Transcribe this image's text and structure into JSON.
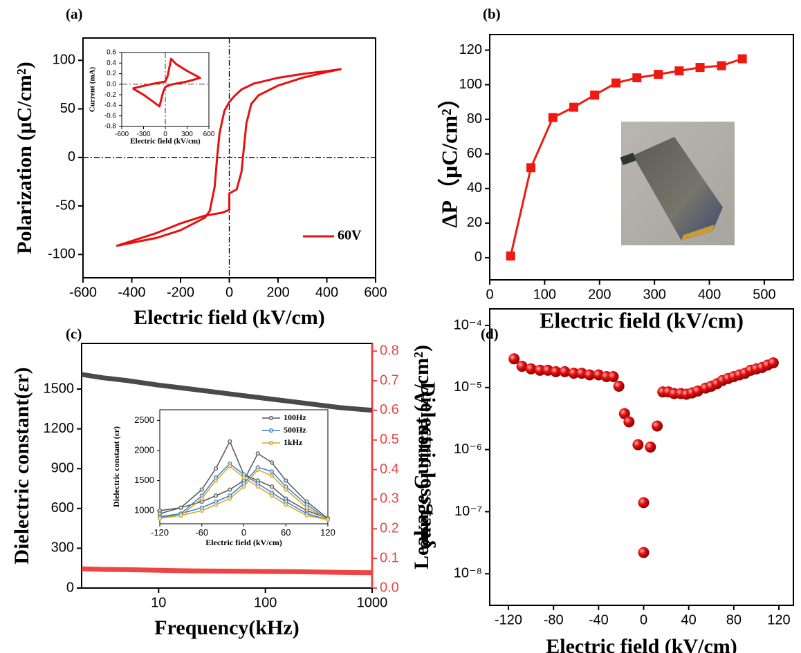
{
  "chart_data": [
    {
      "type": "line",
      "label": "(a)",
      "xlabel": "Electric field (kV/cm)",
      "ylabel": "Polarization (μC/cm²)",
      "xlim": [
        -600,
        600
      ],
      "xticks": [
        -600,
        -400,
        -200,
        0,
        200,
        400,
        600
      ],
      "ylim": [
        -124,
        123
      ],
      "yticks": [
        -100,
        -50,
        0,
        50,
        100
      ],
      "legend": "lower right",
      "series": [
        {
          "name": "60V",
          "color": "#e8100f",
          "x": [
            460,
            400,
            300,
            200,
            100,
            50,
            20,
            0,
            -20,
            -40,
            -50,
            -60,
            -80,
            -100,
            -200,
            -300,
            -400,
            -460,
            -300,
            -200,
            -100,
            -30,
            0,
            0,
            30,
            50,
            60,
            70,
            90,
            120,
            200,
            300,
            400,
            460
          ],
          "values": [
            91,
            89,
            86,
            82,
            76,
            70,
            63,
            57,
            48,
            25,
            0,
            -30,
            -55,
            -62,
            -75,
            -83,
            -88,
            -91,
            -78,
            -68,
            -60,
            -57,
            -54,
            -37,
            -33,
            -15,
            10,
            35,
            55,
            64,
            74,
            82,
            88,
            91
          ]
        }
      ]
    },
    {
      "type": "line",
      "xlabel": "Electric field (kV/cm)",
      "ylabel": "Current (mA)",
      "xlim": [
        -600,
        600
      ],
      "xticks": [
        -600,
        -300,
        0,
        300,
        600
      ],
      "ylim": [
        -0.8,
        0.6
      ],
      "yticks": [
        -0.8,
        -0.6,
        -0.4,
        -0.2,
        {
          "value": 0,
          "label": "0.0"
        },
        0.2,
        0.4,
        0.6
      ],
      "series": [
        {
          "color": "#e8100f",
          "x": [
            -450,
            -200,
            0,
            30,
            80,
            150,
            300,
            480,
            300,
            100,
            0,
            -30,
            -80,
            -150,
            -300,
            -450
          ],
          "values": [
            -0.08,
            0.0,
            0.05,
            0.15,
            0.48,
            0.38,
            0.25,
            0.12,
            0.05,
            0.0,
            -0.05,
            -0.15,
            -0.42,
            -0.35,
            -0.2,
            -0.08
          ]
        }
      ]
    },
    {
      "type": "line",
      "label": "(b)",
      "xlabel": "Electric field (kV/cm)",
      "ylabel": "ΔP（μC/cm²）",
      "xlim": [
        0,
        553
      ],
      "xticks": [
        0,
        100,
        200,
        300,
        400,
        500
      ],
      "ylim": [
        -12.8,
        129
      ],
      "yticks": [
        0,
        20,
        40,
        60,
        80,
        100,
        120
      ],
      "series": [
        {
          "color": "#ee1a12",
          "marker": "square",
          "x": [
            38,
            75,
            115,
            153,
            191,
            230,
            268,
            307,
            345,
            383,
            422,
            460
          ],
          "values": [
            1,
            52,
            81,
            87,
            94,
            101,
            104,
            106,
            108,
            110,
            111,
            115
          ]
        }
      ]
    },
    {
      "type": "line",
      "label": "(c)",
      "xlabel": "Frequency(kHz)",
      "ylabel": "Dielectric constant(εr)",
      "y2label": "Dielectric loss tanδ",
      "xscale": "log",
      "xlim": [
        1.9,
        1000
      ],
      "xticks": [
        10,
        100,
        1000
      ],
      "ylim": [
        0,
        1844
      ],
      "yticks": [
        0,
        300,
        600,
        900,
        1200,
        1500
      ],
      "y2lim": [
        0,
        0.826
      ],
      "y2ticks": [
        {
          "value": 0,
          "label": "0.0"
        },
        0.1,
        0.2,
        0.3,
        0.4,
        0.5,
        0.6,
        0.7,
        0.8
      ],
      "series": [
        {
          "color": "#4a4a4a",
          "x": [
            1.9,
            3,
            5,
            10,
            20,
            50,
            100,
            200,
            500,
            1000
          ],
          "values": [
            1610,
            1585,
            1565,
            1530,
            1500,
            1460,
            1430,
            1400,
            1360,
            1340
          ]
        },
        {
          "color": "#ee4444",
          "axis": "y2",
          "x": [
            1.9,
            3,
            5,
            10,
            20,
            50,
            100,
            200,
            500,
            1000
          ],
          "values": [
            0.065,
            0.063,
            0.062,
            0.06,
            0.058,
            0.057,
            0.056,
            0.055,
            0.053,
            0.052
          ]
        }
      ]
    },
    {
      "type": "line",
      "xlabel": "Electric field (kV/cm)",
      "ylabel": "Dielectric constant (εr)",
      "xlim": [
        -120,
        120
      ],
      "xticks": [
        -120,
        -60,
        0,
        60,
        120
      ],
      "ylim": [
        782,
        2677
      ],
      "yticks": [
        1000,
        1500,
        2000,
        2500
      ],
      "legend": "upper right",
      "series": [
        {
          "name": "100Hz",
          "color": "#555555",
          "marker": "circle",
          "x": [
            -120,
            -90,
            -60,
            -40,
            -20,
            0,
            20,
            40,
            60,
            90,
            120,
            90,
            60,
            40,
            20,
            0,
            -20,
            -40,
            -60,
            -90,
            -120
          ],
          "values": [
            1000,
            1050,
            1150,
            1250,
            1350,
            1500,
            1950,
            1800,
            1500,
            1150,
            870,
            1000,
            1200,
            1400,
            1500,
            1600,
            2150,
            1700,
            1350,
            1050,
            950
          ]
        },
        {
          "name": "500Hz",
          "color": "#2f7fd6",
          "marker": "circle",
          "x": [
            -120,
            -90,
            -60,
            -40,
            -20,
            0,
            20,
            40,
            60,
            90,
            120,
            90,
            60,
            40,
            20,
            0,
            -20,
            -40,
            -60,
            -90,
            -120
          ],
          "values": [
            900,
            950,
            1050,
            1150,
            1250,
            1450,
            1720,
            1650,
            1400,
            1100,
            850,
            950,
            1150,
            1300,
            1450,
            1600,
            1780,
            1550,
            1250,
            950,
            880
          ]
        },
        {
          "name": "1kHz",
          "color": "#d6a51c",
          "marker": "circle",
          "x": [
            -120,
            -90,
            -60,
            -40,
            -20,
            0,
            20,
            40,
            60,
            90,
            120,
            90,
            60,
            40,
            20,
            0,
            -20,
            -40,
            -60,
            -90,
            -120
          ],
          "values": [
            880,
            920,
            1000,
            1100,
            1200,
            1400,
            1680,
            1580,
            1350,
            1050,
            850,
            920,
            1100,
            1250,
            1400,
            1550,
            1740,
            1500,
            1200,
            920,
            870
          ]
        }
      ]
    },
    {
      "type": "scatter",
      "label": "(d)",
      "xlabel": "Electric field (kV/cm)",
      "ylabel": "Leakage Current (A/cm²)",
      "xlim": [
        -136.6,
        132.9
      ],
      "xticks": [
        -120,
        -80,
        -40,
        0,
        40,
        80,
        120
      ],
      "yscale": "log",
      "ylim": [
        3.1e-09,
        0.000185
      ],
      "yticks": [
        {
          "value": 1e-08,
          "label": "10⁻⁸"
        },
        {
          "value": 1e-07,
          "label": "10⁻⁷"
        },
        {
          "value": 1e-06,
          "label": "10⁻⁶"
        },
        {
          "value": 1e-05,
          "label": "10⁻⁵"
        },
        {
          "value": 0.0001,
          "label": "10⁻⁴"
        }
      ],
      "series": [
        {
          "color": "#e51010",
          "marker": "circle",
          "x": [
            -115,
            -108,
            -100,
            -92,
            -85,
            -78,
            -70,
            -62,
            -55,
            -48,
            -40,
            -33,
            -27,
            -22,
            -17,
            -13,
            -5,
            0,
            0,
            6,
            12,
            17,
            22,
            27,
            33,
            38,
            43,
            48,
            55,
            60,
            65,
            70,
            75,
            80,
            85,
            90,
            95,
            100,
            105,
            110,
            115
          ],
          "values": [
            2.9e-05,
            2.2e-05,
            2e-05,
            1.9e-05,
            1.9e-05,
            1.8e-05,
            1.8e-05,
            1.7e-05,
            1.7e-05,
            1.6e-05,
            1.6e-05,
            1.5e-05,
            1.5e-05,
            1.05e-05,
            3.8e-06,
            2.8e-06,
            1.2e-06,
            1.4e-07,
            2.2e-08,
            1.1e-06,
            2.4e-06,
            8.5e-06,
            8.5e-06,
            8e-06,
            8e-06,
            7.8e-06,
            8.2e-06,
            8.8e-06,
            9.8e-06,
            1.05e-05,
            1.15e-05,
            1.3e-05,
            1.4e-05,
            1.5e-05,
            1.6e-05,
            1.7e-05,
            1.9e-05,
            2e-05,
            2.1e-05,
            2.3e-05,
            2.5e-05
          ]
        }
      ]
    }
  ]
}
